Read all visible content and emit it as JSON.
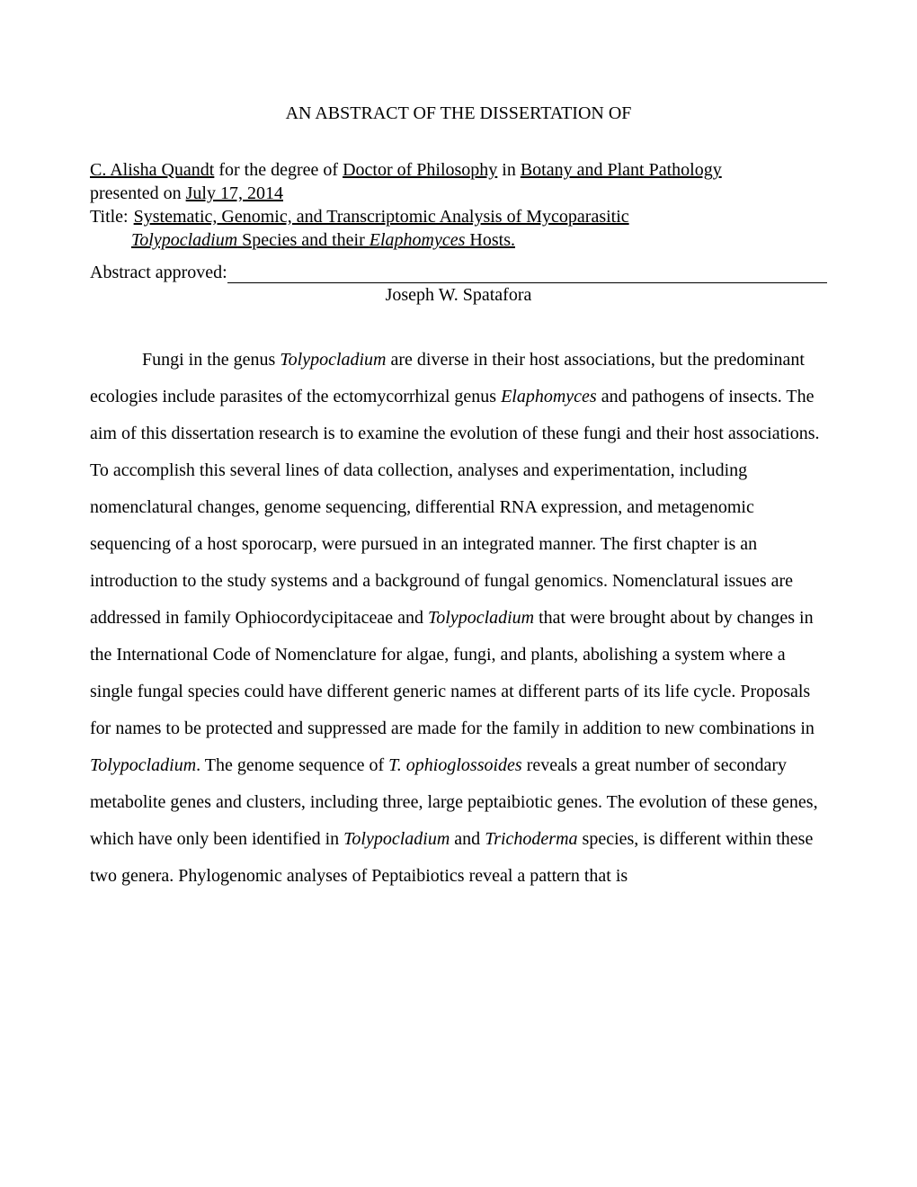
{
  "title": "AN ABSTRACT OF THE DISSERTATION OF",
  "header": {
    "author": "C. Alisha Quandt",
    "degree_prefix": " for the degree of ",
    "degree": "Doctor of Philosophy",
    "degree_in": " in ",
    "department": "Botany and Plant Pathology",
    "presented_on_label": "presented on ",
    "presented_on": "July 17, 2014",
    "title_label": "Title: ",
    "thesis_title_line1a": "Systematic, Genomic, and Transcriptomic Analysis of Mycoparasitic",
    "thesis_title_line2a": "Tolypocladium",
    "thesis_title_line2b": " Species and their ",
    "thesis_title_line2c": "Elaphomyces",
    "thesis_title_line2d": " Hosts."
  },
  "approval": {
    "label": "Abstract approved:",
    "approver": "Joseph W. Spatafora"
  },
  "abstract": {
    "p1a": "Fungi in the genus ",
    "p1b": "Tolypocladium",
    "p1c": " are diverse in their host associations, but the predominant ecologies include parasites of the ectomycorrhizal genus ",
    "p1d": "Elaphomyces",
    "p1e": " and pathogens of insects.  The aim of this dissertation research is to examine the evolution of these fungi and their host associations.  To accomplish this several lines of data collection, analyses and experimentation, including nomenclatural changes, genome sequencing, differential RNA expression, and metagenomic sequencing of a host sporocarp, were pursued in an integrated manner.  The first chapter is an introduction to the study systems and a background of fungal genomics.  Nomenclatural issues are addressed in family Ophiocordycipitaceae and ",
    "p1f": "Tolypocladium",
    "p1g": " that were brought about by changes in the International Code of Nomenclature for algae, fungi, and plants, abolishing a system where a single fungal species could have different generic names at different parts of its life cycle.  Proposals for names to be protected and suppressed are made for the family in addition to new combinations in ",
    "p1h": "Tolypocladium",
    "p1i": ".  The genome sequence of ",
    "p1j": "T. ophioglossoides",
    "p1k": " reveals a great number of secondary metabolite genes and clusters, including three, large peptaibiotic genes.  The evolution of these genes, which have only been identified in ",
    "p1l": "Tolypocladium",
    "p1m": " and ",
    "p1n": "Trichoderma",
    "p1o": " species, is different within these two genera.  Phylogenomic analyses of Peptaibiotics reveal a pattern that is"
  }
}
